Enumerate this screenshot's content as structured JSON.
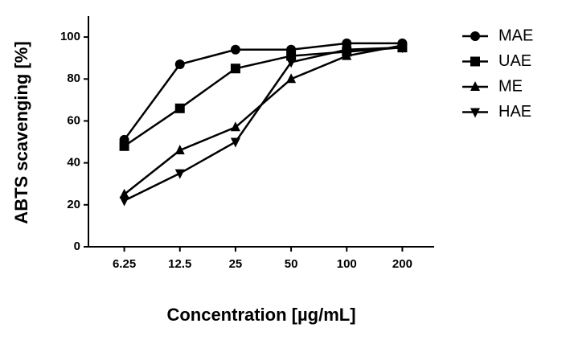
{
  "chart_data": {
    "type": "line",
    "xlabel": "Concentration [µg/mL]",
    "ylabel": "ABTS scavenging [%]",
    "categories": [
      "6.25",
      "12.5",
      "25",
      "50",
      "100",
      "200"
    ],
    "series": [
      {
        "name": "MAE",
        "color": "#000000",
        "marker": "circle",
        "values": [
          51,
          87,
          94,
          94,
          97,
          97
        ]
      },
      {
        "name": "UAE",
        "color": "#000000",
        "marker": "square",
        "values": [
          48,
          66,
          85,
          91,
          93,
          95
        ]
      },
      {
        "name": "ME",
        "color": "#000000",
        "marker": "triangle-up",
        "values": [
          25,
          46,
          57,
          80,
          91,
          96
        ]
      },
      {
        "name": "HAE",
        "color": "#000000",
        "marker": "triangle-down",
        "values": [
          22,
          35,
          50,
          88,
          94,
          95
        ]
      }
    ],
    "ylim": [
      0,
      110
    ],
    "yticks": [
      0,
      20,
      40,
      60,
      80,
      100
    ],
    "grid": false,
    "legend": "right"
  }
}
